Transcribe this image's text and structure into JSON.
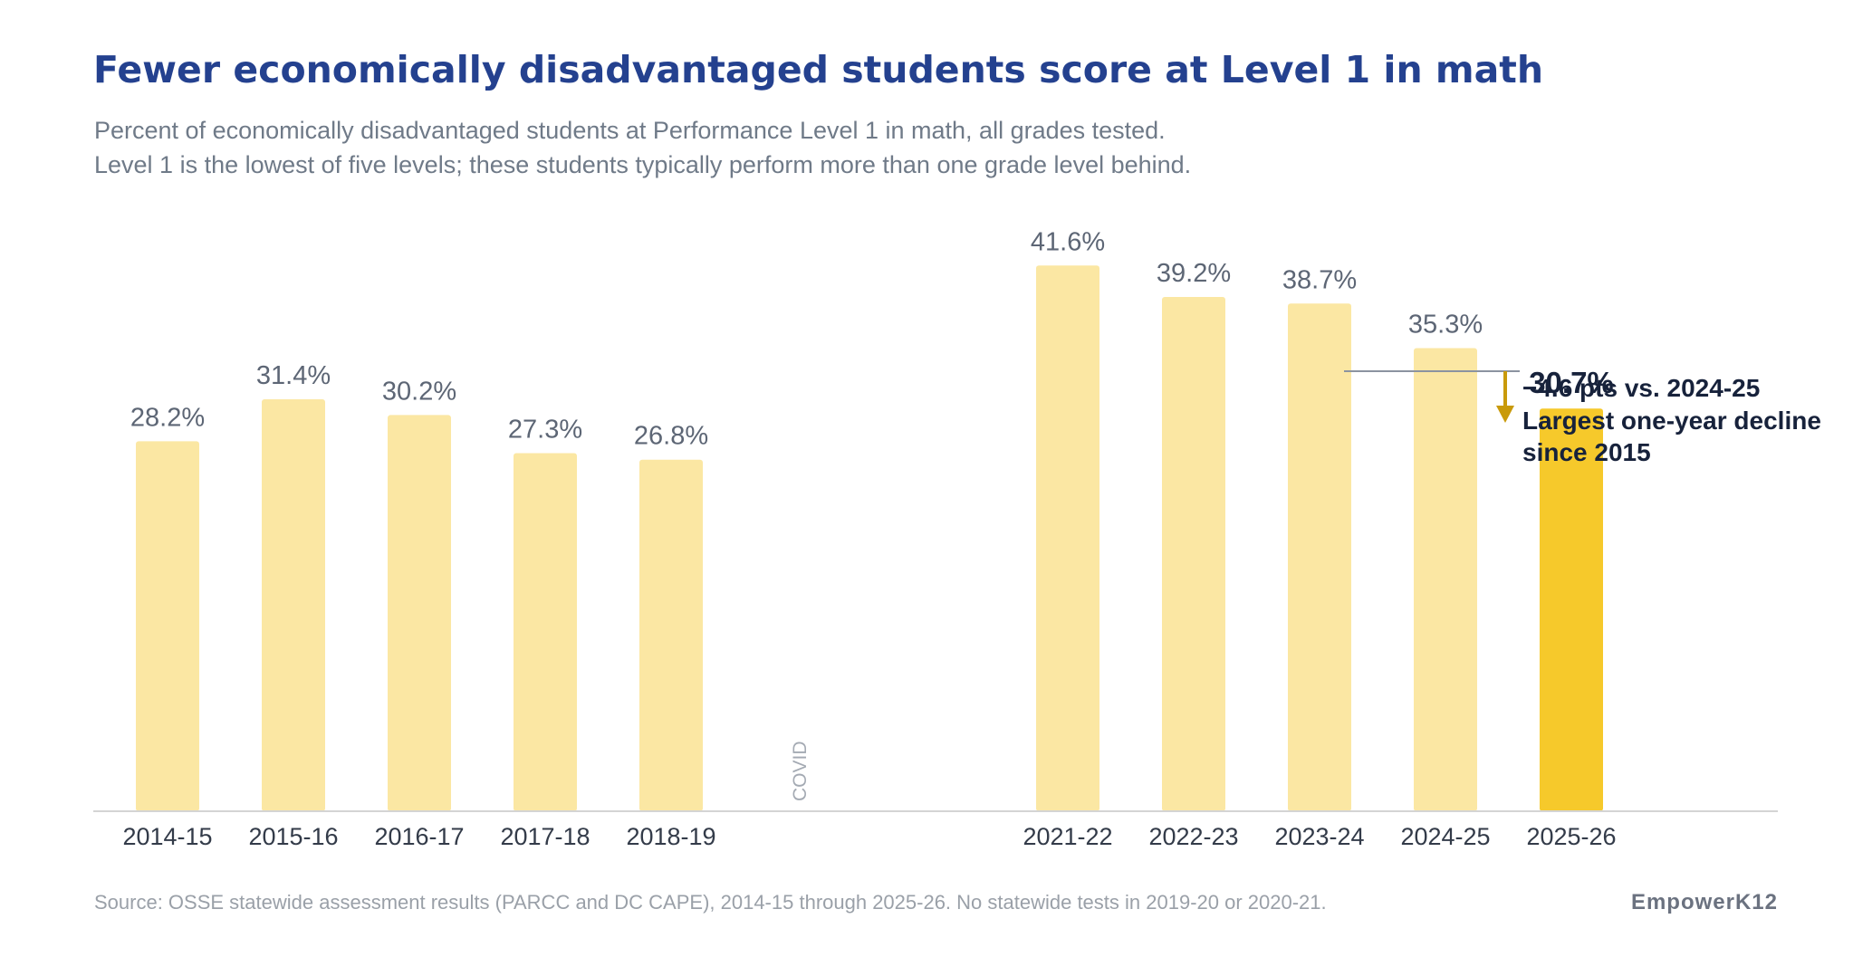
{
  "title": "Fewer economically disadvantaged students score at Level 1 in math",
  "subtitle_lines": [
    "Percent of economically disadvantaged students at Performance Level 1 in math, all grades tested.",
    "Level 1 is the lowest of five levels; these students typically perform more than one grade level behind."
  ],
  "source": "Source: OSSE statewide assessment results (PARCC and DC CAPE), 2014-15 through 2025-26. No statewide tests in 2019-20 or 2020-21.",
  "brand": "EmpowerK12",
  "gap_label": "COVID",
  "annotation": {
    "lines": [
      "−4.6 pts vs. 2024-25",
      "Largest one-year decline",
      "since 2015"
    ],
    "color": "#c99a0a"
  },
  "colors": {
    "title": "#24418f",
    "bar": "#fbe7a3",
    "bar_highlight": "#f6c92b",
    "axis": "#d4d4d4"
  },
  "chart_data": {
    "type": "bar",
    "title": "Fewer economically disadvantaged students score at Level 1 in math",
    "xlabel": "",
    "ylabel": "",
    "ylim": [
      0,
      45
    ],
    "grid": false,
    "categories": [
      "2014-15",
      "2015-16",
      "2016-17",
      "2017-18",
      "2018-19",
      "2021-22",
      "2022-23",
      "2023-24",
      "2024-25",
      "2025-26"
    ],
    "values": [
      28.2,
      31.4,
      30.2,
      27.3,
      26.8,
      41.6,
      39.2,
      38.7,
      35.3,
      30.7
    ],
    "labels": [
      "28.2%",
      "31.4%",
      "30.2%",
      "27.3%",
      "26.8%",
      "41.6%",
      "39.2%",
      "38.7%",
      "35.3%",
      "30.7%"
    ],
    "highlight_index": 9,
    "gap_after_index": 4,
    "unit": "%"
  }
}
